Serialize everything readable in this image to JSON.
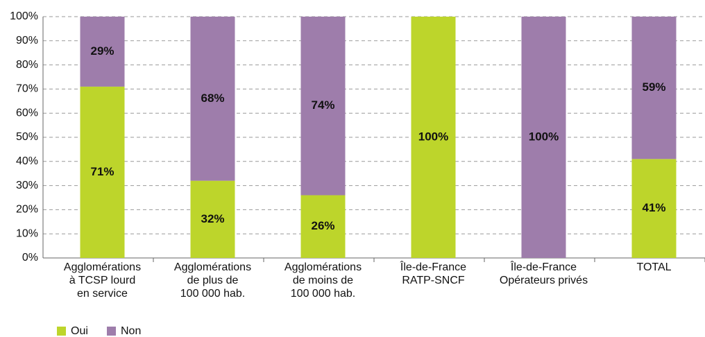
{
  "chart_data": {
    "type": "stacked_bar",
    "categories": [
      "Agglomérations\nà TCSP lourd\nen service",
      "Agglomérations\nde plus de\n100 000 hab.",
      "Agglomérations\nde moins de\n100 000 hab.",
      "Île-de-France\nRATP-SNCF",
      "Île-de-France\nOpérateurs privés",
      "TOTAL"
    ],
    "series": [
      {
        "name": "Oui",
        "color": "#bdd52b",
        "values": [
          71,
          32,
          26,
          100,
          0,
          41
        ],
        "value_labels": [
          "71%",
          "32%",
          "26%",
          "100%",
          null,
          "41%"
        ]
      },
      {
        "name": "Non",
        "color": "#9e7dab",
        "values": [
          29,
          68,
          74,
          0,
          100,
          59
        ],
        "value_labels": [
          "29%",
          "68%",
          "74%",
          null,
          "100%",
          "59%"
        ]
      }
    ],
    "ylim": [
      0,
      100
    ],
    "yticks": [
      {
        "value": 0,
        "label": "0%"
      },
      {
        "value": 10,
        "label": "10%"
      },
      {
        "value": 20,
        "label": "20%"
      },
      {
        "value": 30,
        "label": "30%"
      },
      {
        "value": 40,
        "label": "40%"
      },
      {
        "value": 50,
        "label": "50%"
      },
      {
        "value": 60,
        "label": "60%"
      },
      {
        "value": 70,
        "label": "70%"
      },
      {
        "value": 80,
        "label": "80%"
      },
      {
        "value": 90,
        "label": "90%"
      },
      {
        "value": 100,
        "label": "100%"
      }
    ],
    "grid": true,
    "legend": "bottom-left"
  }
}
